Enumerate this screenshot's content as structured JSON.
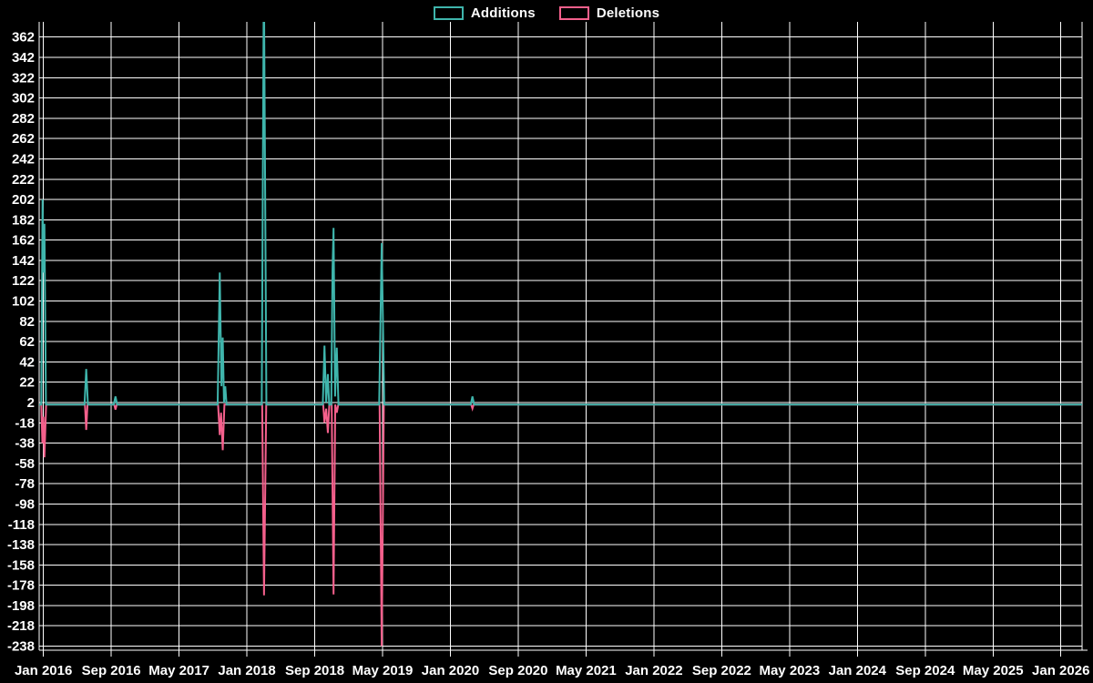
{
  "legend": {
    "additions_label": "Additions",
    "deletions_label": "Deletions"
  },
  "colors": {
    "background": "#000000",
    "grid": "#ffffff",
    "axis_text": "#ffffff",
    "additions": "#3fb5ac",
    "deletions": "#f4608c"
  },
  "chart_data": {
    "type": "line",
    "title": "",
    "xlabel": "",
    "ylabel": "",
    "grid": true,
    "legend_position": "top-center",
    "x_axis": {
      "unit": "months since Jan 2016",
      "domain": [
        -0.5,
        122.5
      ],
      "tick_positions": [
        0,
        8,
        16,
        24,
        32,
        40,
        48,
        56,
        64,
        72,
        80,
        88,
        96,
        104,
        112,
        120
      ],
      "tick_labels": [
        "Jan 2016",
        "Sep 2016",
        "May 2017",
        "Jan 2018",
        "Sep 2018",
        "May 2019",
        "Jan 2020",
        "Sep 2020",
        "May 2021",
        "Jan 2022",
        "Sep 2022",
        "May 2023",
        "Jan 2024",
        "Sep 2024",
        "May 2025",
        "Jan 2026"
      ]
    },
    "y_axis": {
      "domain": [
        -242,
        368
      ],
      "tick_values": [
        362,
        342,
        322,
        302,
        282,
        262,
        242,
        222,
        202,
        182,
        162,
        142,
        122,
        102,
        82,
        62,
        42,
        22,
        2,
        -18,
        -38,
        -58,
        -78,
        -98,
        -118,
        -138,
        -158,
        -178,
        -198,
        -218,
        -238
      ],
      "tick_labels": [
        "362",
        "342",
        "322",
        "302",
        "282",
        "262",
        "242",
        "222",
        "202",
        "182",
        "162",
        "142",
        "122",
        "102",
        "82",
        "62",
        "42",
        "22",
        "2",
        "-18",
        "-38",
        "-58",
        "-78",
        "-98",
        "-118",
        "-138",
        "-158",
        "-178",
        "-198",
        "-218",
        "-238"
      ]
    },
    "spikes_summary": [
      {
        "date": "Jan 2016",
        "additions": 202,
        "deletions": -52
      },
      {
        "date": "Jun 2016",
        "additions": 35,
        "deletions": -25
      },
      {
        "date": "Sep 2016",
        "additions": 8,
        "deletions": -5
      },
      {
        "date": "Oct 2017",
        "additions": [
          130,
          66,
          18
        ],
        "deletions": [
          -30,
          -45
        ]
      },
      {
        "date": "Mar 2018",
        "additions": "clipped above 362",
        "deletions": -188
      },
      {
        "date": "Oct 2018",
        "additions": [
          58,
          30
        ],
        "deletions": [
          -18,
          -28
        ]
      },
      {
        "date": "Nov 2018",
        "additions": [
          174,
          134,
          56
        ],
        "deletions": [
          -187,
          -8
        ]
      },
      {
        "date": "May 2019",
        "additions": 159,
        "deletions": -238
      },
      {
        "date": "Mar 2020",
        "additions": 8,
        "deletions": -4
      }
    ],
    "series": [
      {
        "name": "Additions",
        "color_key": "additions",
        "points": [
          [
            -0.5,
            0
          ],
          [
            -0.25,
            0
          ],
          [
            -0.1,
            202
          ],
          [
            0.02,
            130
          ],
          [
            0.12,
            178
          ],
          [
            0.3,
            0
          ],
          [
            4.85,
            0
          ],
          [
            5.05,
            35
          ],
          [
            5.25,
            0
          ],
          [
            8.3,
            0
          ],
          [
            8.5,
            8
          ],
          [
            8.7,
            0
          ],
          [
            20.55,
            0
          ],
          [
            20.8,
            130
          ],
          [
            21.0,
            18
          ],
          [
            21.15,
            66
          ],
          [
            21.3,
            2
          ],
          [
            21.45,
            18
          ],
          [
            21.6,
            0
          ],
          [
            25.75,
            0
          ],
          [
            26.0,
            430
          ],
          [
            26.3,
            0
          ],
          [
            32.95,
            0
          ],
          [
            33.15,
            58
          ],
          [
            33.35,
            2
          ],
          [
            33.55,
            30
          ],
          [
            33.7,
            0
          ],
          [
            33.95,
            0
          ],
          [
            34.1,
            134
          ],
          [
            34.22,
            174
          ],
          [
            34.4,
            8
          ],
          [
            34.6,
            56
          ],
          [
            34.8,
            0
          ],
          [
            39.6,
            0
          ],
          [
            39.9,
            159
          ],
          [
            40.2,
            0
          ],
          [
            50.4,
            0
          ],
          [
            50.6,
            8
          ],
          [
            50.8,
            0
          ],
          [
            122.5,
            0
          ]
        ]
      },
      {
        "name": "Deletions",
        "color_key": "deletions",
        "points": [
          [
            -0.5,
            0
          ],
          [
            -0.25,
            0
          ],
          [
            -0.12,
            -38
          ],
          [
            0.0,
            -12
          ],
          [
            0.12,
            -52
          ],
          [
            0.32,
            0
          ],
          [
            4.9,
            0
          ],
          [
            5.05,
            -25
          ],
          [
            5.2,
            0
          ],
          [
            8.35,
            0
          ],
          [
            8.5,
            -5
          ],
          [
            8.65,
            0
          ],
          [
            20.6,
            0
          ],
          [
            20.8,
            -30
          ],
          [
            20.95,
            -8
          ],
          [
            21.15,
            -45
          ],
          [
            21.35,
            0
          ],
          [
            25.8,
            0
          ],
          [
            26.02,
            -188
          ],
          [
            26.28,
            0
          ],
          [
            33.0,
            0
          ],
          [
            33.15,
            -18
          ],
          [
            33.35,
            -4
          ],
          [
            33.55,
            -28
          ],
          [
            33.72,
            0
          ],
          [
            34.0,
            0
          ],
          [
            34.22,
            -187
          ],
          [
            34.42,
            0
          ],
          [
            34.6,
            -8
          ],
          [
            34.78,
            0
          ],
          [
            39.65,
            0
          ],
          [
            39.9,
            -238
          ],
          [
            40.15,
            0
          ],
          [
            50.45,
            0
          ],
          [
            50.6,
            -4
          ],
          [
            50.75,
            0
          ],
          [
            122.5,
            0
          ]
        ]
      }
    ]
  }
}
